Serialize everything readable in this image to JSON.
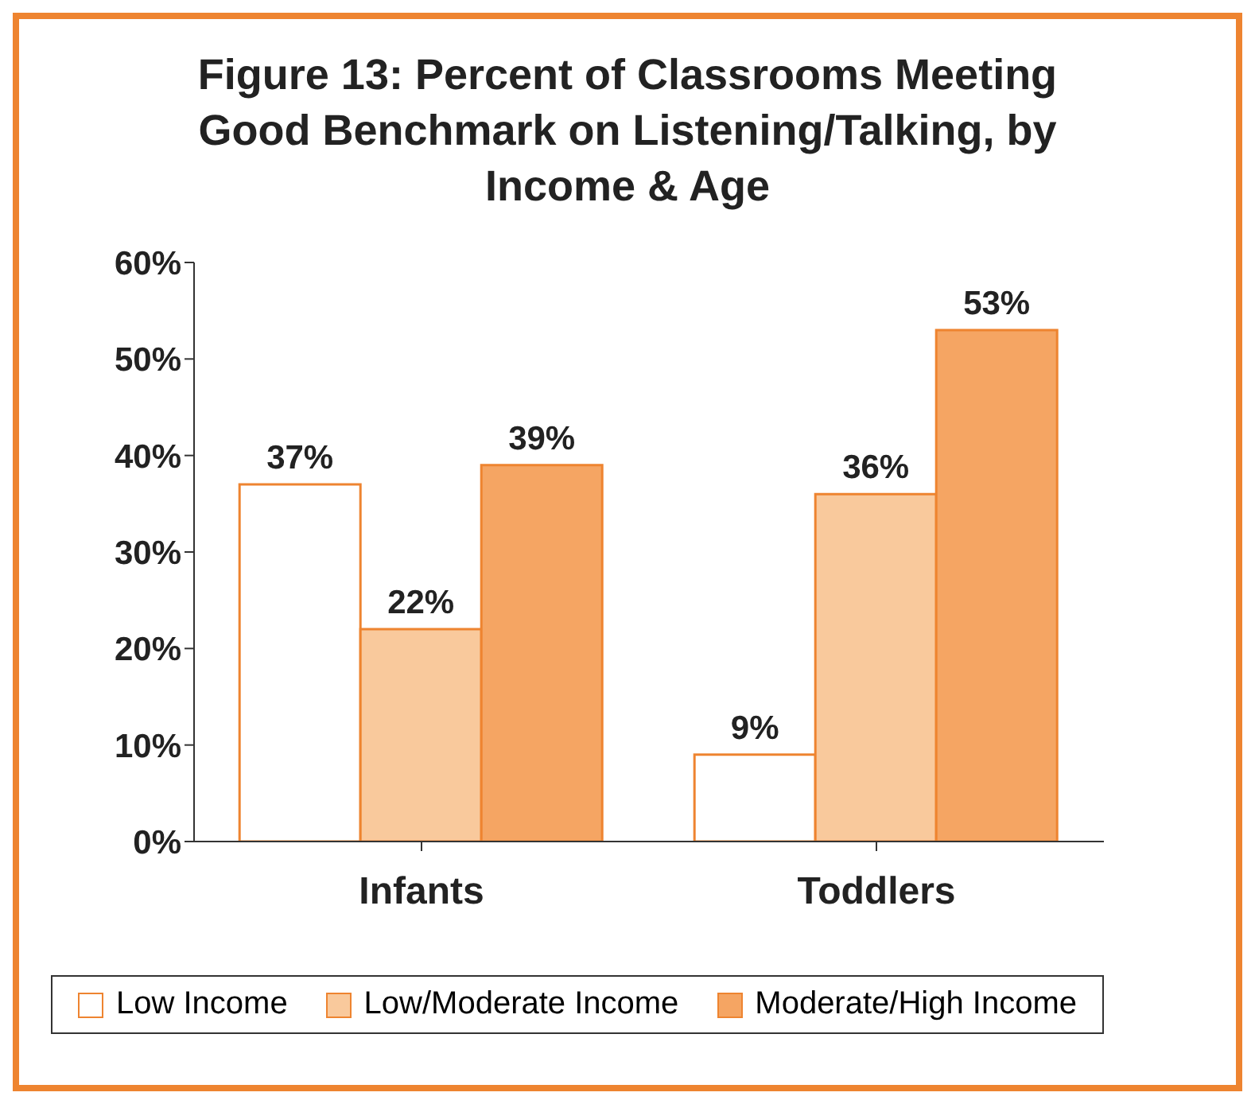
{
  "chart_data": {
    "type": "bar",
    "title": "Figure 13: Percent of Classrooms Meeting Good Benchmark on Listening/Talking, by Income & Age",
    "categories": [
      "Infants",
      "Toddlers"
    ],
    "series": [
      {
        "name": "Low Income",
        "color": "#ffffff",
        "values": [
          37,
          9
        ],
        "value_labels": [
          "37%",
          "9%"
        ]
      },
      {
        "name": "Low/Moderate Income",
        "color": "#f9c99c",
        "values": [
          22,
          36
        ],
        "value_labels": [
          "22%",
          "36%"
        ]
      },
      {
        "name": "Moderate/High Income",
        "color": "#f5a563",
        "values": [
          39,
          53
        ],
        "value_labels": [
          "39%",
          "53%"
        ]
      }
    ],
    "ylim": [
      0,
      60
    ],
    "yticks": [
      {
        "value": 0,
        "label": "0%"
      },
      {
        "value": 10,
        "label": "10%"
      },
      {
        "value": 20,
        "label": "20%"
      },
      {
        "value": 30,
        "label": "30%"
      },
      {
        "value": 40,
        "label": "40%"
      },
      {
        "value": 50,
        "label": "50%"
      },
      {
        "value": 60,
        "label": "60%"
      }
    ],
    "grid": false,
    "legend": "bottom"
  }
}
